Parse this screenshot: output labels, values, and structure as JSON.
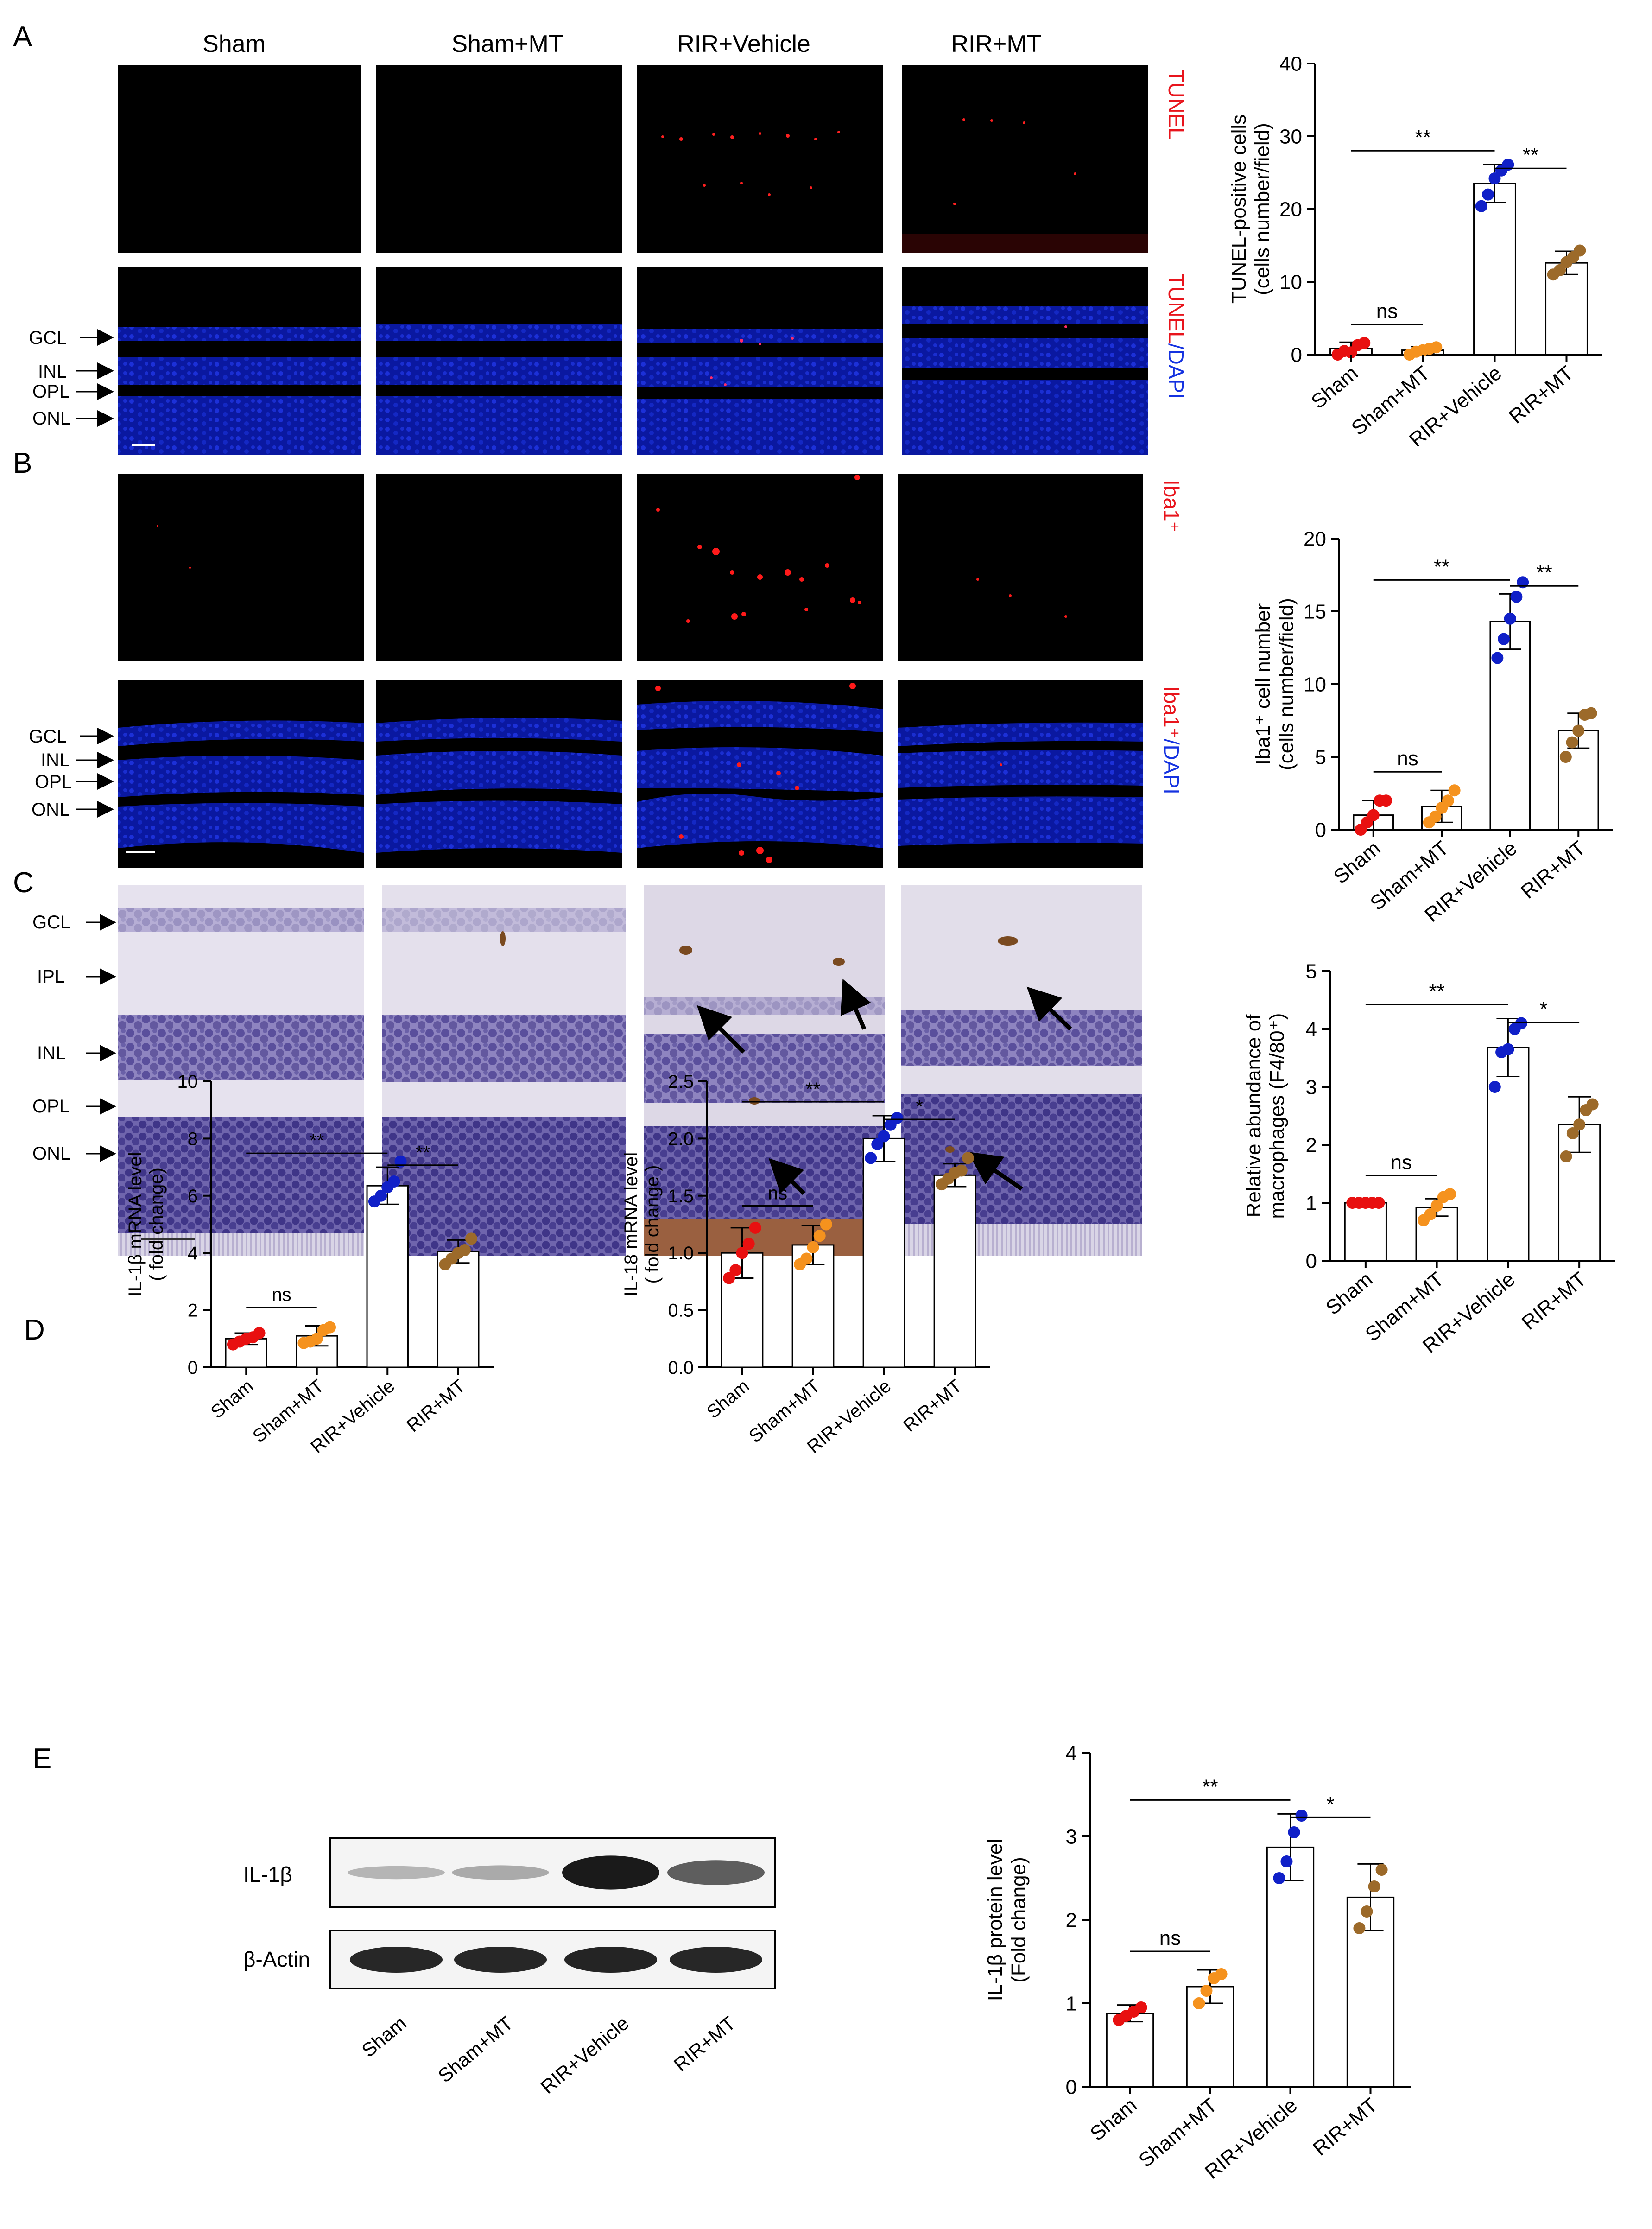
{
  "panel_letters": [
    "A",
    "B",
    "C",
    "D",
    "E"
  ],
  "groups": [
    "Sham",
    "Sham+MT",
    "RIR+Vehicle",
    "RIR+MT"
  ],
  "colors": {
    "sham": "#e81010",
    "sham_mt": "#f5921e",
    "rir_vehicle": "#1020c8",
    "rir_mt": "#9c6a2a",
    "tunel": "#e8141c",
    "dapi": "#1432e0"
  },
  "panel_a": {
    "column_titles": [
      "Sham",
      "Sham+MT",
      "RIR+Vehicle",
      "RIR+MT"
    ],
    "row1_label": "TUNEL",
    "row2_label_red": "TUNEL",
    "row2_label_blue": "/DAPI",
    "layers": [
      "GCL",
      "INL",
      "OPL",
      "ONL"
    ]
  },
  "panel_b": {
    "row1_label": "Iba1⁺",
    "row2_label_red": "Iba1⁺",
    "row2_label_blue": "/DAPI",
    "layers": [
      "GCL",
      "INL",
      "OPL",
      "ONL"
    ]
  },
  "panel_c": {
    "layers": [
      "GCL",
      "IPL",
      "INL",
      "OPL",
      "ONL"
    ]
  },
  "panel_e_blot": {
    "bands": [
      "IL-1β",
      "β-Actin"
    ],
    "lane_labels": [
      "Sham",
      "Sham+MT",
      "RIR+Vehicle",
      "RIR+MT"
    ],
    "il1b_intensity": [
      0.15,
      0.2,
      0.95,
      0.6
    ],
    "actin_intensity": [
      0.9,
      0.9,
      0.92,
      0.9
    ]
  },
  "chart_data": [
    {
      "id": "tunel",
      "type": "bar",
      "categories": [
        "Sham",
        "Sham+MT",
        "RIR+Vehicle",
        "RIR+MT"
      ],
      "values": [
        0.8,
        0.6,
        23.5,
        12.6
      ],
      "sd": [
        0.9,
        0.5,
        2.6,
        1.6
      ],
      "points": [
        [
          0,
          0.5,
          0.3,
          1.3,
          1.6
        ],
        [
          0,
          0.4,
          0.6,
          0.8,
          1.0
        ],
        [
          20.4,
          22.0,
          24.2,
          25.3,
          26.1
        ],
        [
          11.0,
          11.6,
          12.7,
          13.4,
          14.3
        ]
      ],
      "ylabel": [
        "TUNEL-positive cells",
        "(cells number/field)"
      ],
      "ylim": [
        0,
        40
      ],
      "yticks": [
        0,
        10,
        20,
        30,
        40
      ],
      "annotations": [
        {
          "from": 0,
          "to": 1,
          "text": "ns"
        },
        {
          "from": 0,
          "to": 2,
          "text": "**"
        },
        {
          "from": 2,
          "to": 3,
          "text": "**"
        }
      ]
    },
    {
      "id": "iba1",
      "type": "bar",
      "categories": [
        "Sham",
        "Sham+MT",
        "RIR+Vehicle",
        "RIR+MT"
      ],
      "values": [
        1.0,
        1.6,
        14.3,
        6.8
      ],
      "sd": [
        1.0,
        1.1,
        1.9,
        1.2
      ],
      "points": [
        [
          0,
          0.5,
          1.0,
          2.0,
          2.0
        ],
        [
          0.5,
          0.9,
          1.5,
          2.0,
          2.7
        ],
        [
          11.8,
          13.1,
          14.5,
          16.0,
          17.0
        ],
        [
          5.0,
          6.0,
          6.8,
          7.9,
          8.0
        ]
      ],
      "ylabel": [
        "Iba1⁺ cell number",
        "(cells number/field)"
      ],
      "ylim": [
        0,
        20
      ],
      "yticks": [
        0,
        5,
        10,
        15,
        20
      ],
      "annotations": [
        {
          "from": 0,
          "to": 1,
          "text": "ns"
        },
        {
          "from": 0,
          "to": 2,
          "text": "**"
        },
        {
          "from": 2,
          "to": 3,
          "text": "**"
        }
      ]
    },
    {
      "id": "f480",
      "type": "bar",
      "categories": [
        "Sham",
        "Sham+MT",
        "RIR+Vehicle",
        "RIR+MT"
      ],
      "values": [
        1.0,
        0.92,
        3.68,
        2.35
      ],
      "sd": [
        0,
        0.15,
        0.5,
        0.48
      ],
      "points": [
        [
          1,
          1,
          1,
          1,
          1
        ],
        [
          0.7,
          0.8,
          0.95,
          1.1,
          1.15
        ],
        [
          3.0,
          3.6,
          3.65,
          4.0,
          4.1
        ],
        [
          1.8,
          2.2,
          2.35,
          2.6,
          2.7
        ]
      ],
      "ylabel": [
        "Relative abundance of",
        "macrophages (F4/80⁺)"
      ],
      "ylim": [
        0,
        5
      ],
      "yticks": [
        0,
        1,
        2,
        3,
        4,
        5
      ],
      "annotations": [
        {
          "from": 0,
          "to": 1,
          "text": "ns"
        },
        {
          "from": 0,
          "to": 2,
          "text": "**"
        },
        {
          "from": 2,
          "to": 3,
          "text": "*"
        }
      ]
    },
    {
      "id": "il1b_mrna",
      "type": "bar",
      "categories": [
        "Sham",
        "Sham+MT",
        "RIR+Vehicle",
        "RIR+MT"
      ],
      "values": [
        1.0,
        1.1,
        6.35,
        4.05
      ],
      "sd": [
        0.2,
        0.35,
        0.65,
        0.4
      ],
      "points": [
        [
          0.8,
          0.9,
          1.0,
          1.05,
          1.2
        ],
        [
          0.85,
          0.9,
          1.0,
          1.3,
          1.4
        ],
        [
          5.8,
          6.0,
          6.3,
          6.5,
          7.2
        ],
        [
          3.6,
          3.8,
          4.0,
          4.1,
          4.5
        ]
      ],
      "ylabel": [
        "IL-1β mRNA level",
        "( fold change)"
      ],
      "ylim": [
        0,
        10
      ],
      "yticks": [
        0,
        2,
        4,
        6,
        8,
        10
      ],
      "annotations": [
        {
          "from": 0,
          "to": 1,
          "text": "ns"
        },
        {
          "from": 0,
          "to": 2,
          "text": "**"
        },
        {
          "from": 2,
          "to": 3,
          "text": "**"
        }
      ]
    },
    {
      "id": "il18_mrna",
      "type": "bar",
      "categories": [
        "Sham",
        "Sham+MT",
        "RIR+Vehicle",
        "RIR+MT"
      ],
      "values": [
        1.0,
        1.07,
        2.0,
        1.68
      ],
      "sd": [
        0.22,
        0.17,
        0.2,
        0.1
      ],
      "points": [
        [
          0.78,
          0.85,
          1.0,
          1.08,
          1.22
        ],
        [
          0.9,
          0.95,
          1.05,
          1.15,
          1.25
        ],
        [
          1.83,
          1.95,
          2.02,
          2.12,
          2.18
        ],
        [
          1.6,
          1.65,
          1.7,
          1.72,
          1.83
        ]
      ],
      "ylabel": [
        "IL-18 mRNA level",
        "( fold change )"
      ],
      "ylim": [
        0,
        2.5
      ],
      "yticks": [
        0,
        0.5,
        1.0,
        1.5,
        2.0,
        2.5
      ],
      "tickdp": 1,
      "annotations": [
        {
          "from": 0,
          "to": 1,
          "text": "ns"
        },
        {
          "from": 0,
          "to": 2,
          "text": "**"
        },
        {
          "from": 2,
          "to": 3,
          "text": "*"
        }
      ]
    },
    {
      "id": "il1b_protein",
      "type": "bar",
      "categories": [
        "Sham",
        "Sham+MT",
        "RIR+Vehicle",
        "RIR+MT"
      ],
      "values": [
        0.88,
        1.2,
        2.87,
        2.27
      ],
      "sd": [
        0.1,
        0.2,
        0.4,
        0.4
      ],
      "points": [
        [
          0.8,
          0.85,
          0.9,
          0.95
        ],
        [
          1.0,
          1.15,
          1.3,
          1.35
        ],
        [
          2.5,
          2.7,
          3.05,
          3.25
        ],
        [
          1.9,
          2.1,
          2.4,
          2.6
        ]
      ],
      "ylabel": [
        "IL-1β  protein level",
        "(Fold change)"
      ],
      "ylim": [
        0,
        4
      ],
      "yticks": [
        0,
        1,
        2,
        3,
        4
      ],
      "annotations": [
        {
          "from": 0,
          "to": 1,
          "text": "ns"
        },
        {
          "from": 0,
          "to": 2,
          "text": "**"
        },
        {
          "from": 2,
          "to": 3,
          "text": "*"
        }
      ]
    }
  ]
}
